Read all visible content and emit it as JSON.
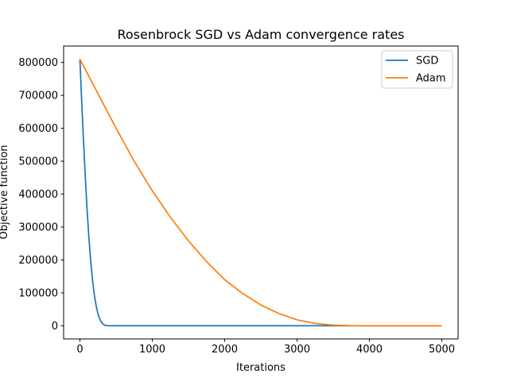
{
  "chart_data": {
    "type": "line",
    "title": "Rosenbrock SGD vs Adam convergence rates",
    "xlabel": "Iterations",
    "ylabel": "Objective function",
    "xlim": [
      -225,
      5225
    ],
    "ylim": [
      -40000,
      850000
    ],
    "xticks": [
      0,
      1000,
      2000,
      3000,
      4000,
      5000
    ],
    "yticks": [
      0,
      100000,
      200000,
      300000,
      400000,
      500000,
      600000,
      700000,
      800000
    ],
    "grid": false,
    "legend_position": "top-right",
    "series": [
      {
        "name": "SGD",
        "color": "#1f77b4",
        "x": [
          0,
          25,
          50,
          75,
          100,
          125,
          150,
          175,
          200,
          225,
          250,
          275,
          300,
          325,
          350,
          375,
          400,
          450,
          500,
          1000,
          2000,
          3000,
          4000,
          5000
        ],
        "y": [
          810000,
          680000,
          560000,
          450000,
          350000,
          265000,
          195000,
          138000,
          93000,
          60000,
          36000,
          20000,
          10000,
          4000,
          1200,
          300,
          0,
          0,
          0,
          0,
          0,
          0,
          0,
          0
        ]
      },
      {
        "name": "Adam",
        "color": "#ff7f0e",
        "x": [
          0,
          250,
          500,
          750,
          1000,
          1250,
          1500,
          1750,
          2000,
          2250,
          2500,
          2750,
          3000,
          3250,
          3500,
          3750,
          4000,
          4250,
          4500,
          4750,
          5000
        ],
        "y": [
          810000,
          705000,
          600000,
          500000,
          410000,
          330000,
          258000,
          195000,
          140000,
          98000,
          63000,
          37000,
          18000,
          7000,
          2000,
          300,
          0,
          0,
          0,
          0,
          0
        ]
      }
    ]
  }
}
